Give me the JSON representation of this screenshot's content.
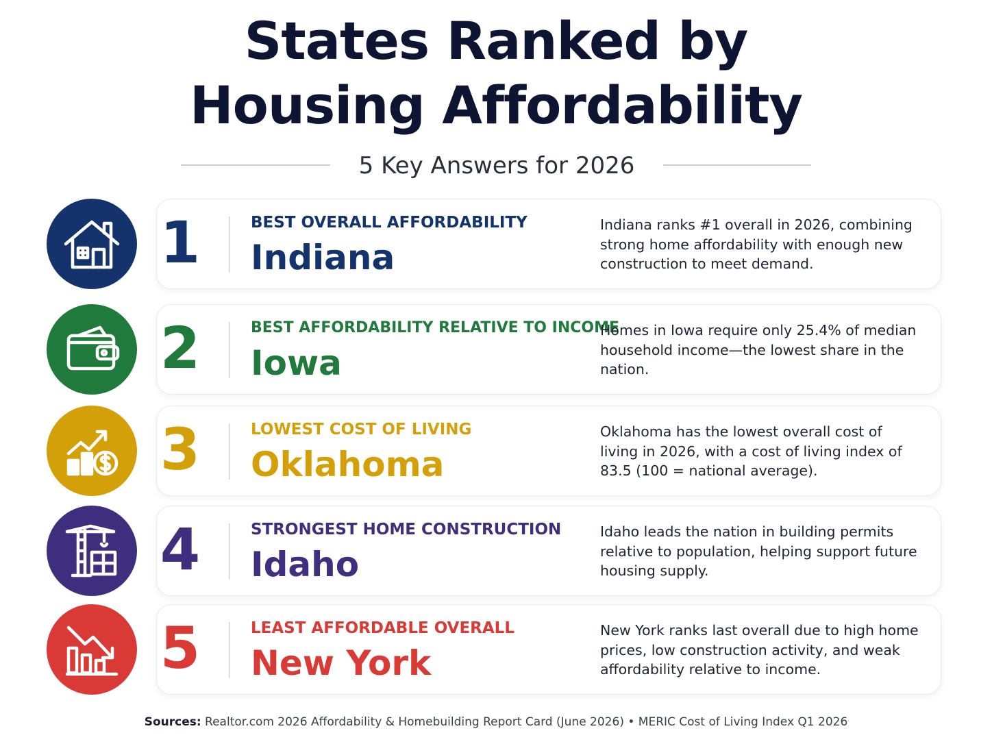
{
  "header": {
    "title_line1": "States Ranked by",
    "title_line2": "Housing Affordability",
    "subtitle": "5 Key Answers for 2026"
  },
  "colors": {
    "navy": "#14326b",
    "green": "#1f7a3c",
    "gold": "#d4a00a",
    "purple": "#3f2e7e",
    "red": "#d93a36"
  },
  "items": [
    {
      "rank": "1",
      "category": "BEST OVERALL AFFORDABILITY",
      "state": "Indiana",
      "description": "Indiana ranks #1 overall in 2026, combining strong home affordability with enough new construction to meet demand.",
      "icon": "house-icon",
      "color": "#14326b"
    },
    {
      "rank": "2",
      "category": "BEST AFFORDABILITY RELATIVE TO INCOME",
      "state": "Iowa",
      "description": "Homes in Iowa require only 25.4% of median household income—the lowest share in the nation.",
      "icon": "wallet-icon",
      "color": "#1f7a3c"
    },
    {
      "rank": "3",
      "category": "LOWEST COST OF LIVING",
      "state": "Oklahoma",
      "description": "Oklahoma has the lowest overall cost of living in 2026, with a cost of living index of 83.5 (100 = national average).",
      "icon": "chart-up-dollar-icon",
      "color": "#d4a00a"
    },
    {
      "rank": "4",
      "category": "STRONGEST HOME CONSTRUCTION",
      "state": "Idaho",
      "description": "Idaho leads the nation in building permits relative to population, helping support future housing supply.",
      "icon": "crane-icon",
      "color": "#3f2e7e"
    },
    {
      "rank": "5",
      "category": "LEAST AFFORDABLE OVERALL",
      "state": "New York",
      "description": "New York ranks last overall due to high home prices, low construction activity, and weak affordability relative to income.",
      "icon": "chart-down-icon",
      "color": "#d93a36"
    }
  ],
  "sources": {
    "label": "Sources:",
    "text": "Realtor.com 2026 Affordability & Homebuilding Report Card (June 2026) • MERIC Cost of Living Index Q1 2026"
  }
}
